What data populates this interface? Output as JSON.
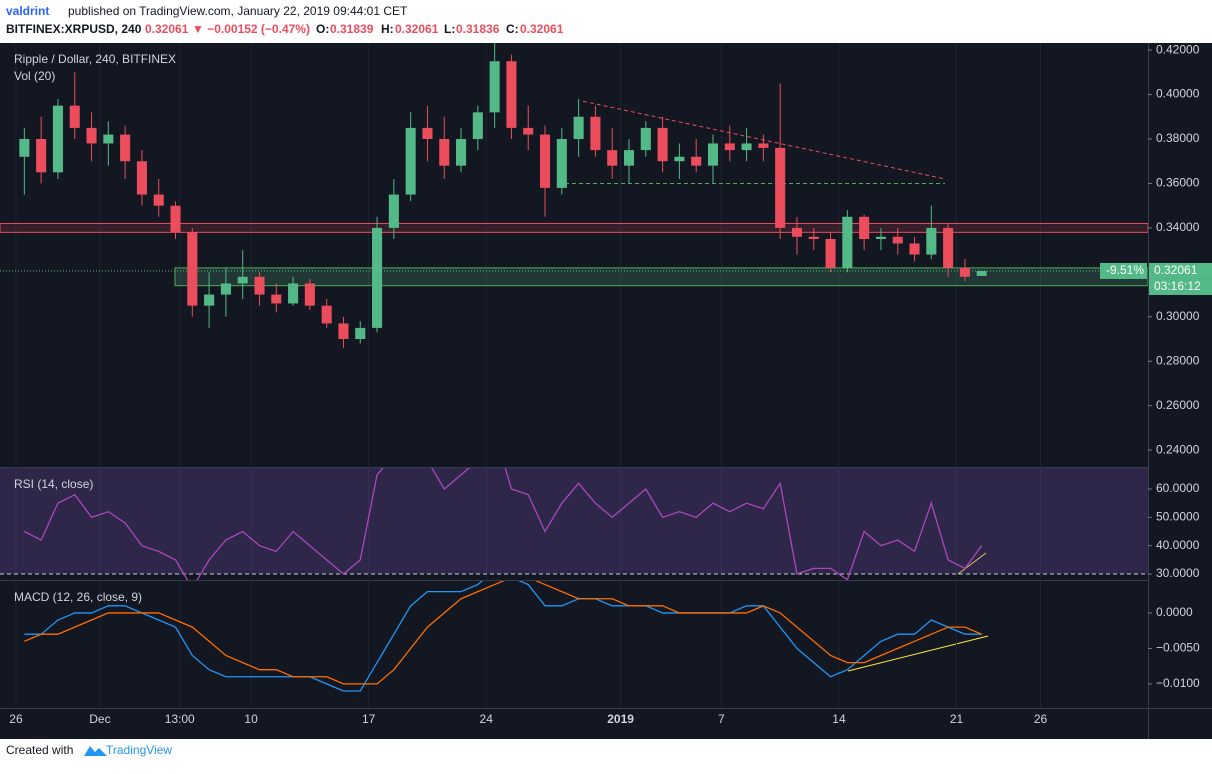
{
  "header": {
    "author": "valdrint",
    "published": "published on TradingView.com, January 22, 2019 09:44:01 CET",
    "symbol": "BITFINEX:XRPUSD, 240",
    "last": "0.32061",
    "change": "▼ −0.00152 (−0.47%)",
    "o_label": "O:",
    "o": "0.31839",
    "h_label": "H:",
    "h": "0.32061",
    "l_label": "L:",
    "l": "0.31836",
    "c_label": "C:",
    "c": "0.32061"
  },
  "footer": {
    "created": "Created with",
    "brand": "TradingView"
  },
  "chart_data": [
    {
      "type": "candlestick",
      "title": "Ripple / Dollar, 240, BITFINEX",
      "subtitle": "Vol (20)",
      "up_color": "#53b987",
      "down_color": "#eb4d5c",
      "candles": [
        [
          0.372,
          0.385,
          0.355,
          0.38
        ],
        [
          0.38,
          0.39,
          0.36,
          0.365
        ],
        [
          0.365,
          0.398,
          0.362,
          0.395
        ],
        [
          0.395,
          0.41,
          0.38,
          0.385
        ],
        [
          0.385,
          0.392,
          0.37,
          0.378
        ],
        [
          0.378,
          0.388,
          0.368,
          0.382
        ],
        [
          0.382,
          0.386,
          0.362,
          0.37
        ],
        [
          0.37,
          0.375,
          0.35,
          0.355
        ],
        [
          0.355,
          0.362,
          0.345,
          0.35
        ],
        [
          0.35,
          0.352,
          0.335,
          0.338
        ],
        [
          0.338,
          0.34,
          0.3,
          0.305
        ],
        [
          0.305,
          0.32,
          0.295,
          0.31
        ],
        [
          0.31,
          0.322,
          0.3,
          0.315
        ],
        [
          0.315,
          0.33,
          0.308,
          0.318
        ],
        [
          0.318,
          0.32,
          0.305,
          0.31
        ],
        [
          0.31,
          0.315,
          0.302,
          0.306
        ],
        [
          0.306,
          0.318,
          0.305,
          0.315
        ],
        [
          0.315,
          0.317,
          0.303,
          0.305
        ],
        [
          0.305,
          0.308,
          0.295,
          0.297
        ],
        [
          0.297,
          0.3,
          0.286,
          0.29
        ],
        [
          0.29,
          0.298,
          0.288,
          0.295
        ],
        [
          0.295,
          0.345,
          0.293,
          0.34
        ],
        [
          0.34,
          0.362,
          0.335,
          0.355
        ],
        [
          0.355,
          0.392,
          0.352,
          0.385
        ],
        [
          0.385,
          0.395,
          0.37,
          0.38
        ],
        [
          0.38,
          0.39,
          0.362,
          0.368
        ],
        [
          0.368,
          0.385,
          0.365,
          0.38
        ],
        [
          0.38,
          0.395,
          0.375,
          0.392
        ],
        [
          0.392,
          0.424,
          0.385,
          0.415
        ],
        [
          0.415,
          0.418,
          0.38,
          0.385
        ],
        [
          0.385,
          0.395,
          0.375,
          0.382
        ],
        [
          0.382,
          0.386,
          0.345,
          0.358
        ],
        [
          0.358,
          0.385,
          0.355,
          0.38
        ],
        [
          0.38,
          0.398,
          0.372,
          0.39
        ],
        [
          0.39,
          0.395,
          0.372,
          0.375
        ],
        [
          0.375,
          0.385,
          0.362,
          0.368
        ],
        [
          0.368,
          0.38,
          0.36,
          0.375
        ],
        [
          0.375,
          0.388,
          0.372,
          0.385
        ],
        [
          0.385,
          0.39,
          0.365,
          0.37
        ],
        [
          0.37,
          0.378,
          0.362,
          0.372
        ],
        [
          0.372,
          0.38,
          0.365,
          0.368
        ],
        [
          0.368,
          0.382,
          0.36,
          0.378
        ],
        [
          0.378,
          0.386,
          0.37,
          0.375
        ],
        [
          0.375,
          0.385,
          0.37,
          0.378
        ],
        [
          0.378,
          0.382,
          0.37,
          0.376
        ],
        [
          0.376,
          0.405,
          0.335,
          0.34
        ],
        [
          0.34,
          0.345,
          0.328,
          0.336
        ],
        [
          0.336,
          0.34,
          0.33,
          0.335
        ],
        [
          0.335,
          0.338,
          0.32,
          0.322
        ],
        [
          0.322,
          0.348,
          0.32,
          0.345
        ],
        [
          0.345,
          0.346,
          0.33,
          0.335
        ],
        [
          0.335,
          0.34,
          0.33,
          0.336
        ],
        [
          0.336,
          0.34,
          0.328,
          0.333
        ],
        [
          0.333,
          0.336,
          0.325,
          0.328
        ],
        [
          0.328,
          0.35,
          0.326,
          0.34
        ],
        [
          0.34,
          0.342,
          0.318,
          0.322
        ],
        [
          0.322,
          0.326,
          0.316,
          0.318
        ],
        [
          0.31839,
          0.32061,
          0.31836,
          0.32061
        ]
      ],
      "resistance": [
        0.338,
        0.342
      ],
      "support_zone": [
        0.314,
        0.322
      ],
      "support_line": 0.36,
      "trendline": [
        0.397,
        0.362
      ],
      "last_price": {
        "value": 0.32061,
        "label": "0.32061"
      },
      "change_label": "-9.51%",
      "countdown": "03:16:12",
      "xlim": [
        -0.95,
        67.4
      ],
      "xticks": [
        {
          "value": 0,
          "label": "26"
        },
        {
          "value": 5,
          "label": "Dec"
        },
        {
          "value": 9.75,
          "label": "13:00"
        },
        {
          "value": 14,
          "label": "10"
        },
        {
          "value": 21,
          "label": "17"
        },
        {
          "value": 28,
          "label": "24"
        },
        {
          "value": 36,
          "label": "2019"
        },
        {
          "value": 42,
          "label": "7"
        },
        {
          "value": 49,
          "label": "14"
        },
        {
          "value": 56,
          "label": "21"
        },
        {
          "value": 61,
          "label": "26"
        }
      ],
      "ylim": [
        0.2324,
        0.4232
      ],
      "yticks": [
        {
          "value": 0.42,
          "label": "0.42000"
        },
        {
          "value": 0.4,
          "label": "0.40000"
        },
        {
          "value": 0.38,
          "label": "0.38000"
        },
        {
          "value": 0.36,
          "label": "0.36000"
        },
        {
          "value": 0.34,
          "label": "0.34000"
        },
        {
          "value": 0.3,
          "label": "0.30000"
        },
        {
          "value": 0.28,
          "label": "0.28000"
        },
        {
          "value": 0.26,
          "label": "0.26000"
        },
        {
          "value": 0.24,
          "label": "0.24000"
        }
      ]
    },
    {
      "type": "line",
      "title": "RSI (14, close)",
      "bands": [
        30,
        70
      ],
      "series": [
        {
          "name": "RSI",
          "color": "#ab47bc",
          "values": [
            45,
            42,
            55,
            58,
            50,
            52,
            48,
            40,
            38,
            35,
            25,
            35,
            42,
            45,
            40,
            38,
            45,
            40,
            35,
            30,
            35,
            65,
            72,
            78,
            70,
            60,
            65,
            70,
            80,
            60,
            58,
            45,
            55,
            62,
            55,
            50,
            55,
            60,
            50,
            52,
            50,
            55,
            52,
            55,
            53,
            62,
            30,
            32,
            32,
            28,
            45,
            40,
            42,
            38,
            55,
            35,
            32,
            40
          ]
        }
      ],
      "ylim": [
        27.9,
        67.4
      ],
      "yticks": [
        {
          "value": 60,
          "label": "60.0000"
        },
        {
          "value": 50,
          "label": "50.0000"
        },
        {
          "value": 40,
          "label": "40.0000"
        },
        {
          "value": 30,
          "label": "30.0000"
        }
      ]
    },
    {
      "type": "line",
      "title": "MACD (12, 26, close, 9)",
      "series": [
        {
          "name": "MACD",
          "color": "#2196f3",
          "values": [
            -0.003,
            -0.003,
            -0.001,
            0,
            0,
            0.001,
            0.001,
            0,
            -0.001,
            -0.002,
            -0.006,
            -0.008,
            -0.009,
            -0.009,
            -0.009,
            -0.009,
            -0.009,
            -0.009,
            -0.01,
            -0.011,
            -0.011,
            -0.007,
            -0.003,
            0.001,
            0.003,
            0.003,
            0.003,
            0.004,
            0.006,
            0.005,
            0.004,
            0.001,
            0.001,
            0.002,
            0.002,
            0.001,
            0.001,
            0.001,
            0,
            0,
            0,
            0,
            0,
            0.001,
            0.001,
            -0.002,
            -0.005,
            -0.007,
            -0.009,
            -0.008,
            -0.006,
            -0.004,
            -0.003,
            -0.003,
            -0.001,
            -0.002,
            -0.003,
            -0.003
          ]
        },
        {
          "name": "Signal",
          "color": "#ff6d00",
          "values": [
            -0.004,
            -0.003,
            -0.003,
            -0.002,
            -0.001,
            0,
            0,
            0,
            0,
            -0.001,
            -0.002,
            -0.004,
            -0.006,
            -0.007,
            -0.008,
            -0.008,
            -0.009,
            -0.009,
            -0.009,
            -0.01,
            -0.01,
            -0.01,
            -0.008,
            -0.005,
            -0.002,
            0,
            0.002,
            0.003,
            0.004,
            0.005,
            0.005,
            0.004,
            0.003,
            0.002,
            0.002,
            0.002,
            0.001,
            0.001,
            0.001,
            0,
            0,
            0,
            0,
            0,
            0.001,
            0,
            -0.002,
            -0.004,
            -0.006,
            -0.007,
            -0.007,
            -0.006,
            -0.005,
            -0.004,
            -0.003,
            -0.002,
            -0.002,
            -0.003
          ]
        }
      ],
      "ylim": [
        -0.0134,
        0.0045
      ],
      "yticks": [
        {
          "value": 0,
          "label": "0.0000"
        },
        {
          "value": -0.005,
          "label": "−0.0050"
        },
        {
          "value": -0.01,
          "label": "−0.0100"
        }
      ]
    }
  ]
}
